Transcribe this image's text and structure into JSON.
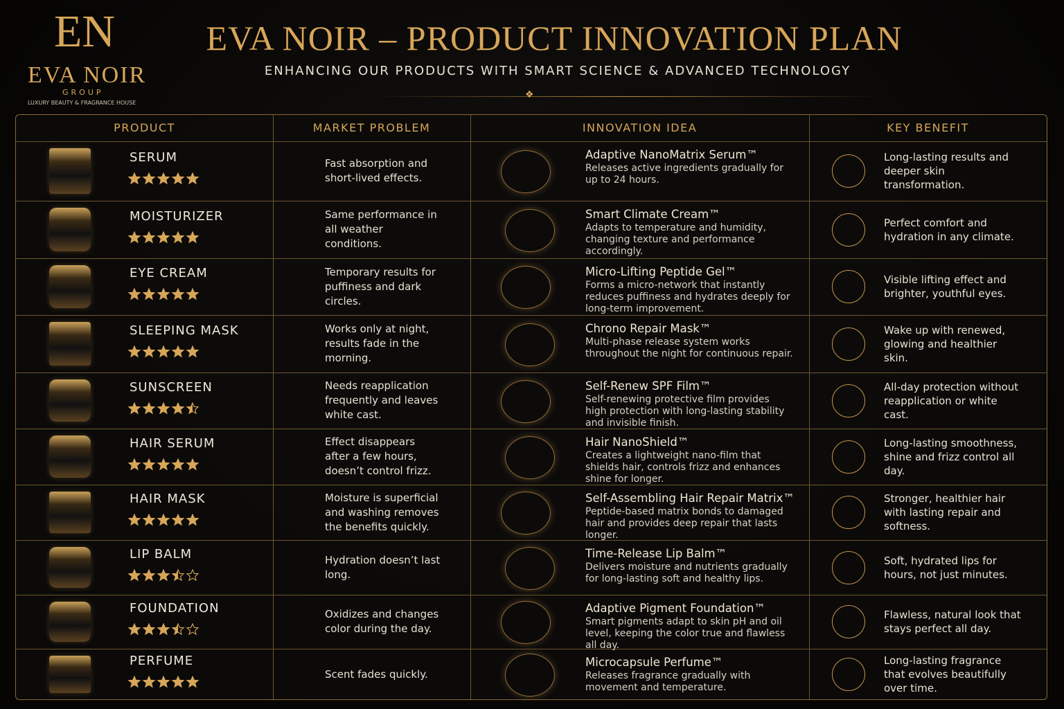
{
  "header": {
    "monogram": "EN",
    "brand": "EVA NOIR",
    "group": "GROUP",
    "tagline": "LUXURY BEAUTY & FRAGRANCE HOUSE",
    "title": "EVA NOIR – PRODUCT INNOVATION PLAN",
    "subtitle": "ENHANCING OUR PRODUCTS WITH SMART SCIENCE & ADVANCED TECHNOLOGY"
  },
  "table": {
    "columns": [
      "PRODUCT",
      "MARKET PROBLEM",
      "INNOVATION IDEA",
      "KEY BENEFIT"
    ],
    "rows": [
      {
        "product": "SERUM",
        "rating": 5,
        "problem": "Fast absorption and short-lived effects.",
        "idea": "Adaptive NanoMatrix Serum™",
        "description": "Releases active ingredients gradually for up to 24 hours.",
        "benefit": "Long-lasting results and deeper skin transformation."
      },
      {
        "product": "MOISTURIZER",
        "rating": 5,
        "problem": "Same performance in all weather conditions.",
        "idea": "Smart Climate Cream™",
        "description": "Adapts to temperature and humidity, changing texture and performance accordingly.",
        "benefit": "Perfect comfort and hydration in any climate."
      },
      {
        "product": "EYE CREAM",
        "rating": 5,
        "problem": "Temporary results for puffiness and dark circles.",
        "idea": "Micro-Lifting Peptide Gel™",
        "description": "Forms a micro-network that instantly reduces puffiness and hydrates deeply for long-term improvement.",
        "benefit": "Visible lifting effect and brighter, youthful eyes."
      },
      {
        "product": "SLEEPING MASK",
        "rating": 5,
        "problem": "Works only at night, results fade in the morning.",
        "idea": "Chrono Repair Mask™",
        "description": "Multi-phase release system works throughout the night for continuous repair.",
        "benefit": "Wake up with renewed, glowing and healthier skin."
      },
      {
        "product": "SUNSCREEN",
        "rating": 4.5,
        "problem": "Needs reapplication frequently and leaves white cast.",
        "idea": "Self-Renew SPF Film™",
        "description": "Self-renewing protective film provides high protection with long-lasting stability and invisible finish.",
        "benefit": "All-day protection without reapplication or white cast."
      },
      {
        "product": "HAIR SERUM",
        "rating": 5,
        "problem": "Effect disappears after a few hours, doesn’t control frizz.",
        "idea": "Hair NanoShield™",
        "description": "Creates a lightweight nano-film that shields hair, controls frizz and enhances shine for longer.",
        "benefit": "Long-lasting smoothness, shine and frizz control all day."
      },
      {
        "product": "HAIR MASK",
        "rating": 5,
        "problem": "Moisture is superficial and washing removes the benefits quickly.",
        "idea": "Self-Assembling Hair Repair Matrix™",
        "description": "Peptide-based matrix bonds to damaged hair and provides deep repair that lasts longer.",
        "benefit": "Stronger, healthier hair with lasting repair and softness."
      },
      {
        "product": "LIP BALM",
        "rating": 3.5,
        "problem": "Hydration doesn’t last long.",
        "idea": "Time-Release Lip Balm™",
        "description": "Delivers moisture and nutrients gradually for long-lasting soft and healthy lips.",
        "benefit": "Soft, hydrated lips for hours, not just minutes."
      },
      {
        "product": "FOUNDATION",
        "rating": 3.5,
        "problem": "Oxidizes and changes color during the day.",
        "idea": "Adaptive Pigment Foundation™",
        "description": "Smart pigments adapt to skin pH and oil level, keeping the color true and flawless all day.",
        "benefit": "Flawless, natural look that stays perfect all day."
      },
      {
        "product": "PERFUME",
        "rating": 5,
        "problem": "Scent fades quickly.",
        "idea": "Microcapsule Perfume™",
        "description": "Releases fragrance gradually with movement and temperature.",
        "benefit": "Long-lasting fragrance that evolves beautifully over time."
      }
    ]
  }
}
